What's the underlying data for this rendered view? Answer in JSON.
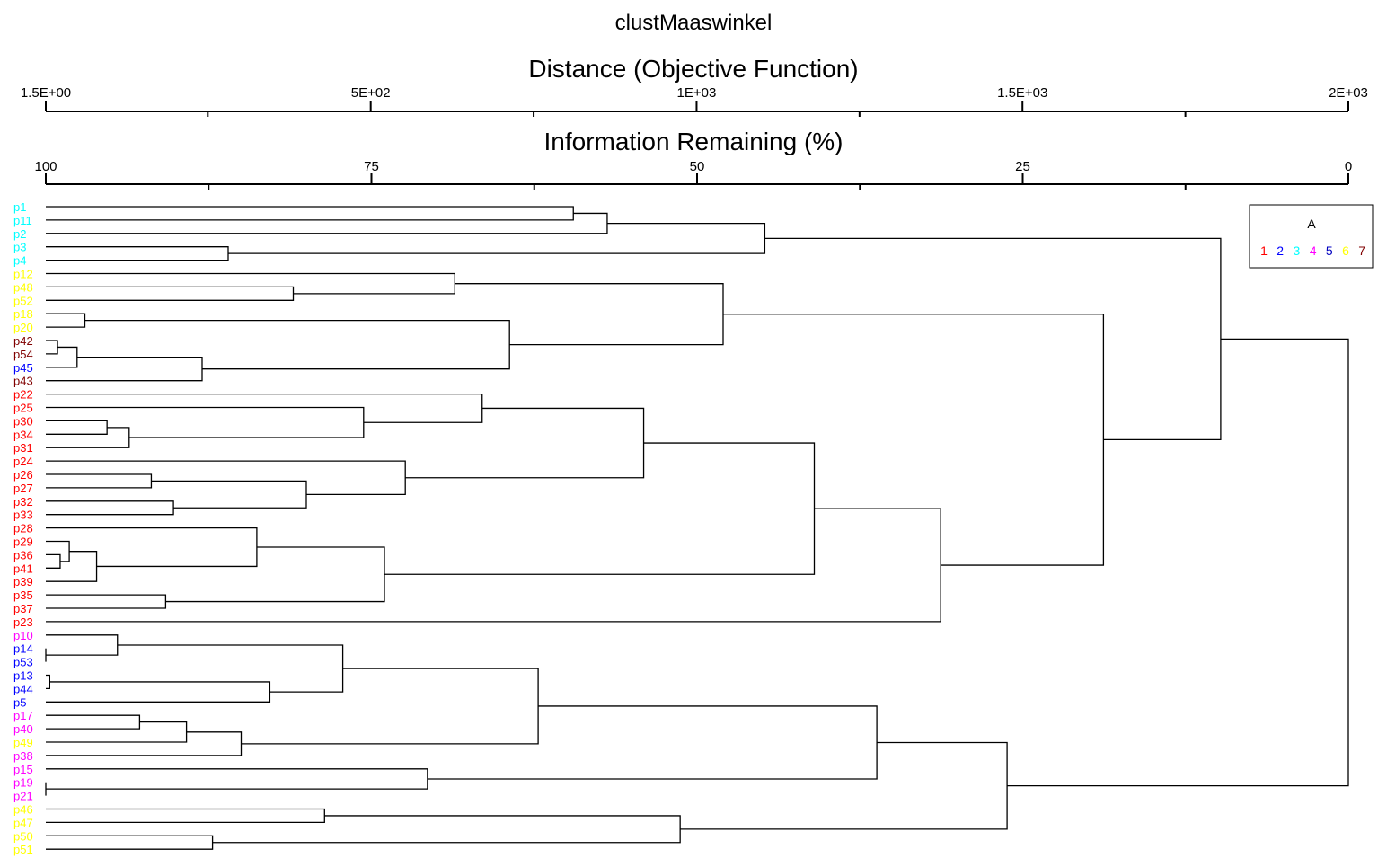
{
  "chart_data": {
    "type": "dendrogram",
    "title": "clustMaaswinkel",
    "top_axis": {
      "label": "Distance (Objective Function)",
      "range": [
        1.5,
        2000
      ],
      "tick_labels": [
        "1.5E+00",
        "5E+02",
        "1E+03",
        "1.5E+03",
        "2E+03"
      ],
      "tick_values": [
        1.5,
        500,
        1000,
        1500,
        2000
      ],
      "minor_tick_values": [
        250,
        750,
        1250,
        1750
      ]
    },
    "bottom_axis": {
      "label": "Information Remaining (%)",
      "range": [
        100,
        0
      ],
      "tick_labels": [
        "100",
        "75",
        "50",
        "25",
        "0"
      ],
      "tick_values": [
        100,
        75,
        50,
        25,
        0
      ],
      "minor_tick_values": [
        87.5,
        62.5,
        37.5,
        12.5
      ]
    },
    "legend": {
      "title": "A",
      "position": "top-right",
      "entries": [
        {
          "label": "1",
          "color": "#ff0000"
        },
        {
          "label": "2",
          "color": "#0000ff"
        },
        {
          "label": "3",
          "color": "#00ffff"
        },
        {
          "label": "4",
          "color": "#ff00ff"
        },
        {
          "label": "5",
          "color": "#0000c0"
        },
        {
          "label": "6",
          "color": "#ffff00"
        },
        {
          "label": "7",
          "color": "#800000"
        }
      ]
    },
    "leaves": [
      {
        "label": "p1",
        "group": "3"
      },
      {
        "label": "p11",
        "group": "3"
      },
      {
        "label": "p2",
        "group": "3"
      },
      {
        "label": "p3",
        "group": "3"
      },
      {
        "label": "p4",
        "group": "3"
      },
      {
        "label": "p12",
        "group": "6"
      },
      {
        "label": "p48",
        "group": "6"
      },
      {
        "label": "p52",
        "group": "6"
      },
      {
        "label": "p18",
        "group": "6"
      },
      {
        "label": "p20",
        "group": "6"
      },
      {
        "label": "p42",
        "group": "7"
      },
      {
        "label": "p54",
        "group": "7"
      },
      {
        "label": "p45",
        "group": "2"
      },
      {
        "label": "p43",
        "group": "7"
      },
      {
        "label": "p22",
        "group": "1"
      },
      {
        "label": "p25",
        "group": "1"
      },
      {
        "label": "p30",
        "group": "1"
      },
      {
        "label": "p34",
        "group": "1"
      },
      {
        "label": "p31",
        "group": "1"
      },
      {
        "label": "p24",
        "group": "1"
      },
      {
        "label": "p26",
        "group": "1"
      },
      {
        "label": "p27",
        "group": "1"
      },
      {
        "label": "p32",
        "group": "1"
      },
      {
        "label": "p33",
        "group": "1"
      },
      {
        "label": "p28",
        "group": "1"
      },
      {
        "label": "p29",
        "group": "1"
      },
      {
        "label": "p36",
        "group": "1"
      },
      {
        "label": "p41",
        "group": "1"
      },
      {
        "label": "p39",
        "group": "1"
      },
      {
        "label": "p35",
        "group": "1"
      },
      {
        "label": "p37",
        "group": "1"
      },
      {
        "label": "p23",
        "group": "1"
      },
      {
        "label": "p10",
        "group": "4"
      },
      {
        "label": "p14",
        "group": "2"
      },
      {
        "label": "p53",
        "group": "2"
      },
      {
        "label": "p13",
        "group": "2"
      },
      {
        "label": "p44",
        "group": "2"
      },
      {
        "label": "p5",
        "group": "2"
      },
      {
        "label": "p17",
        "group": "4"
      },
      {
        "label": "p40",
        "group": "4"
      },
      {
        "label": "p49",
        "group": "6"
      },
      {
        "label": "p38",
        "group": "4"
      },
      {
        "label": "p15",
        "group": "4"
      },
      {
        "label": "p19",
        "group": "4"
      },
      {
        "label": "p21",
        "group": "4"
      },
      {
        "label": "p46",
        "group": "6"
      },
      {
        "label": "p47",
        "group": "6"
      },
      {
        "label": "p50",
        "group": "6"
      },
      {
        "label": "p51",
        "group": "6"
      }
    ],
    "merges_info_remaining_pct": [
      {
        "id": "A1",
        "left": "p1",
        "right": "p11",
        "height": 59.5
      },
      {
        "id": "A2",
        "left": "A1",
        "right": "p2",
        "height": 56.9
      },
      {
        "id": "A3",
        "left": "p3",
        "right": "p4",
        "height": 86.0
      },
      {
        "id": "A4",
        "left": "A2",
        "right": "A3",
        "height": 44.8
      },
      {
        "id": "B1",
        "left": "p48",
        "right": "p52",
        "height": 81.0
      },
      {
        "id": "B2",
        "left": "p12",
        "right": "B1",
        "height": 68.6
      },
      {
        "id": "C1",
        "left": "p18",
        "right": "p20",
        "height": 97.0
      },
      {
        "id": "C2",
        "left": "p42",
        "right": "p54",
        "height": 99.1
      },
      {
        "id": "C3",
        "left": "C2",
        "right": "p45",
        "height": 97.6
      },
      {
        "id": "C4",
        "left": "C3",
        "right": "p43",
        "height": 88.0
      },
      {
        "id": "C5",
        "left": "C1",
        "right": "C4",
        "height": 64.4
      },
      {
        "id": "B3",
        "left": "B2",
        "right": "C5",
        "height": 48.0
      },
      {
        "id": "D1",
        "left": "p30",
        "right": "p34",
        "height": 95.3
      },
      {
        "id": "D2",
        "left": "D1",
        "right": "p31",
        "height": 93.6
      },
      {
        "id": "D3",
        "left": "p25",
        "right": "D2",
        "height": 75.6
      },
      {
        "id": "D4",
        "left": "p22",
        "right": "D3",
        "height": 66.5
      },
      {
        "id": "E1",
        "left": "p26",
        "right": "p27",
        "height": 91.9
      },
      {
        "id": "E2",
        "left": "p32",
        "right": "p33",
        "height": 90.2
      },
      {
        "id": "E3",
        "left": "E1",
        "right": "E2",
        "height": 80.0
      },
      {
        "id": "E4",
        "left": "p24",
        "right": "E3",
        "height": 72.4
      },
      {
        "id": "D5",
        "left": "D4",
        "right": "E4",
        "height": 54.1
      },
      {
        "id": "F1",
        "left": "p36",
        "right": "p41",
        "height": 98.9
      },
      {
        "id": "F2",
        "left": "p29",
        "right": "F1",
        "height": 98.2
      },
      {
        "id": "F3",
        "left": "F2",
        "right": "p39",
        "height": 96.1
      },
      {
        "id": "F4",
        "left": "p28",
        "right": "F3",
        "height": 83.8
      },
      {
        "id": "F5",
        "left": "p35",
        "right": "p37",
        "height": 90.8
      },
      {
        "id": "F6",
        "left": "F4",
        "right": "F5",
        "height": 74.0
      },
      {
        "id": "D6",
        "left": "D5",
        "right": "F6",
        "height": 41.0
      },
      {
        "id": "D7",
        "left": "D6",
        "right": "p23",
        "height": 31.3
      },
      {
        "id": "G1",
        "left": "B3",
        "right": "D7",
        "height": 18.8
      },
      {
        "id": "G2",
        "left": "A4",
        "right": "G1",
        "height": 9.8
      },
      {
        "id": "H1",
        "left": "p14",
        "right": "p53",
        "height": 100.0
      },
      {
        "id": "H2",
        "left": "p10",
        "right": "H1",
        "height": 94.5
      },
      {
        "id": "H3",
        "left": "p13",
        "right": "p44",
        "height": 99.7
      },
      {
        "id": "H4",
        "left": "H3",
        "right": "p5",
        "height": 82.8
      },
      {
        "id": "H5",
        "left": "H2",
        "right": "H4",
        "height": 77.2
      },
      {
        "id": "I1",
        "left": "p17",
        "right": "p40",
        "height": 92.8
      },
      {
        "id": "I2",
        "left": "I1",
        "right": "p49",
        "height": 89.2
      },
      {
        "id": "I3",
        "left": "I2",
        "right": "p38",
        "height": 85.0
      },
      {
        "id": "H6",
        "left": "H5",
        "right": "I3",
        "height": 62.2
      },
      {
        "id": "J1",
        "left": "p19",
        "right": "p21",
        "height": 100.0
      },
      {
        "id": "J2",
        "left": "p15",
        "right": "J1",
        "height": 70.7
      },
      {
        "id": "H7",
        "left": "H6",
        "right": "J2",
        "height": 36.2
      },
      {
        "id": "K1",
        "left": "p46",
        "right": "p47",
        "height": 78.6
      },
      {
        "id": "K2",
        "left": "p50",
        "right": "p51",
        "height": 87.2
      },
      {
        "id": "K3",
        "left": "K1",
        "right": "K2",
        "height": 51.3
      },
      {
        "id": "H8",
        "left": "H7",
        "right": "K3",
        "height": 26.2
      },
      {
        "id": "ROOT",
        "left": "G2",
        "right": "H8",
        "height": 0.0
      }
    ]
  }
}
